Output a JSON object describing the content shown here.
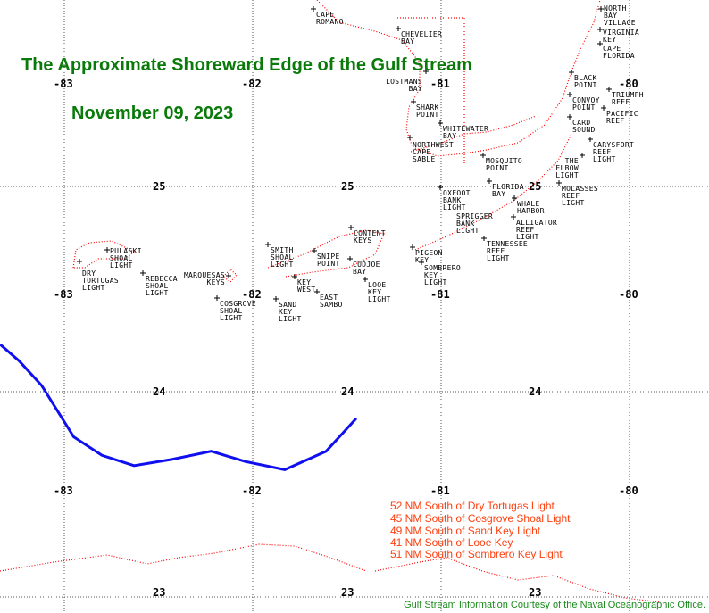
{
  "title": "The Approximate Shoreward Edge of the Gulf Stream",
  "date": "November 09, 2023",
  "colors": {
    "title": "#0a7a0a",
    "gulf_stream": "#1010ee",
    "coastline": "#ff0000",
    "statements": "#ff4010",
    "credit": "#1a8a1a"
  },
  "chart_data": {
    "type": "map",
    "grid": true,
    "lon_range": [
      -83.34,
      -79.58
    ],
    "lat_range": [
      22.92,
      25.91
    ],
    "lon_ticks": [
      "-83",
      "-82",
      "-81",
      "-80"
    ],
    "lat_ticks": [
      "25",
      "24",
      "23"
    ],
    "gulf_stream_edge": [
      {
        "lon": -83.34,
        "lat": 24.23
      },
      {
        "lon": -83.24,
        "lat": 24.15
      },
      {
        "lon": -83.12,
        "lat": 24.03
      },
      {
        "lon": -82.95,
        "lat": 23.78
      },
      {
        "lon": -82.8,
        "lat": 23.69
      },
      {
        "lon": -82.63,
        "lat": 23.64
      },
      {
        "lon": -82.43,
        "lat": 23.67
      },
      {
        "lon": -82.22,
        "lat": 23.71
      },
      {
        "lon": -82.04,
        "lat": 23.66
      },
      {
        "lon": -81.83,
        "lat": 23.62
      },
      {
        "lon": -81.61,
        "lat": 23.71
      },
      {
        "lon": -81.45,
        "lat": 23.87
      }
    ]
  },
  "places": [
    "CAPE\nROMANO",
    "CHEVELIER\nBAY",
    "LOSTMANS\nBAY",
    "SHARK\nPOINT",
    "WHITEWATER\nBAY",
    "NORTHWEST\nCAPE\nSABLE",
    "MOSQUITO\nPOINT",
    "NORTH\nBAY\nVILLAGE",
    "VIRGINIA\nKEY",
    "CAPE\nFLORIDA",
    "BLACK\nPOINT",
    "TRIUMPH\nREEF",
    "CONVOY\nPOINT",
    "PACIFIC\nREEF",
    "CARD\nSOUND",
    "CARYSFORT\nREEF\nLIGHT",
    "THE\nELBOW\nLIGHT",
    "MOLASSES\nREEF\nLIGHT",
    "FLORIDA\nBAY",
    "OXFOOT\nBANK\nLIGHT",
    "WHALE\nHARBOR",
    "SPRIGGER\nBANK\nLIGHT",
    "ALLIGATOR\nREEF\nLIGHT",
    "TENNESSEE\nREEF\nLIGHT",
    "PIGEON\nKEY",
    "SOMBRERO\nKEY\nLIGHT",
    "PULASKI\nSHOAL\nLIGHT",
    "DRY\nTORTUGAS\nLIGHT",
    "REBECCA\nSHOAL\nLIGHT",
    "MARQUESAS\nKEYS",
    "COSGROVE\nSHOAL\nLIGHT",
    "SMITH\nSHOAL\nLIGHT",
    "SNIPE\nPOINT",
    "CONTENT\nKEYS",
    "CUDJOE\nBAY",
    "KEY\nWEST",
    "SAND\nKEY\nLIGHT",
    "EAST\nSAMBO",
    "LOOE\nKEY\nLIGHT"
  ],
  "statements": [
    "52 NM South of Dry Tortugas Light",
    "45 NM South of Cosgrove Shoal Light",
    "49 NM South of Sand Key Light",
    "41 NM South of Looe Key",
    "51 NM South of Sombrero Key Light"
  ],
  "credit": "Gulf Stream Information Courtesy of the Naval Oceanographic Office."
}
